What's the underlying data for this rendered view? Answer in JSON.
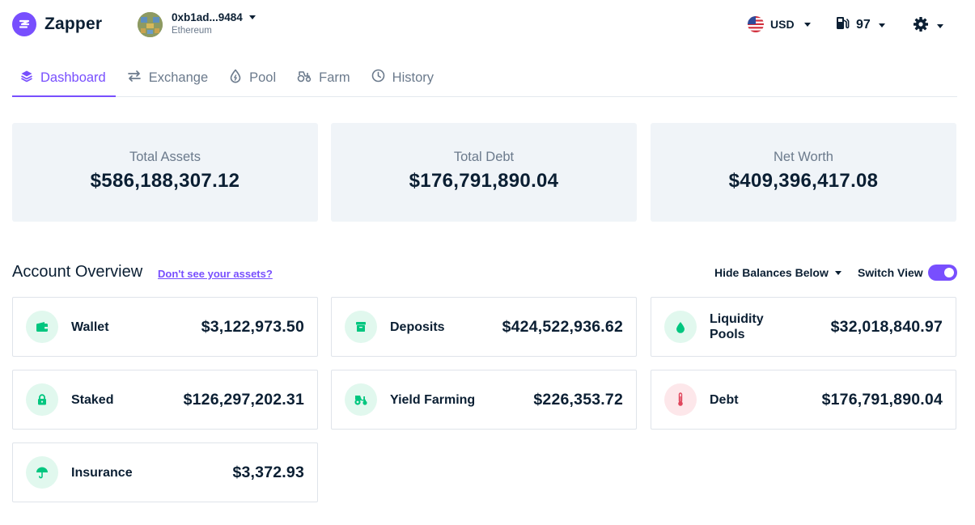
{
  "app": {
    "name": "Zapper"
  },
  "account": {
    "address": "0xb1ad...9484",
    "network": "Ethereum"
  },
  "currency": {
    "code": "USD"
  },
  "gas": {
    "value": "97"
  },
  "nav": [
    {
      "label": "Dashboard",
      "icon": "layers-icon",
      "active": true
    },
    {
      "label": "Exchange",
      "icon": "exchange-icon",
      "active": false
    },
    {
      "label": "Pool",
      "icon": "droplet-icon",
      "active": false
    },
    {
      "label": "Farm",
      "icon": "tractor-icon",
      "active": false
    },
    {
      "label": "History",
      "icon": "clock-icon",
      "active": false
    }
  ],
  "summary": {
    "total_assets": {
      "label": "Total Assets",
      "value": "$586,188,307.12"
    },
    "total_debt": {
      "label": "Total Debt",
      "value": "$176,791,890.04"
    },
    "net_worth": {
      "label": "Net Worth",
      "value": "$409,396,417.08"
    }
  },
  "overview": {
    "title": "Account Overview",
    "link": "Don't see your assets?",
    "hide_balances": "Hide Balances Below",
    "switch_view": "Switch View",
    "switch_on": true
  },
  "categories": [
    {
      "label": "Wallet",
      "value": "$3,122,973.50",
      "icon": "wallet-icon"
    },
    {
      "label": "Deposits",
      "value": "$424,522,936.62",
      "icon": "deposit-box-icon"
    },
    {
      "label": "Liquidity Pools",
      "value": "$32,018,840.97",
      "icon": "droplet-icon"
    },
    {
      "label": "Staked",
      "value": "$126,297,202.31",
      "icon": "lock-icon"
    },
    {
      "label": "Yield Farming",
      "value": "$226,353.72",
      "icon": "tractor-icon"
    },
    {
      "label": "Debt",
      "value": "$176,791,890.04",
      "icon": "thermometer-icon"
    },
    {
      "label": "Insurance",
      "value": "$3,372.93",
      "icon": "umbrella-icon"
    }
  ],
  "colors": {
    "brand": "#784ffe",
    "text": "#0b1f33",
    "muted": "#6b7a8c",
    "asset_green": "#00c67f",
    "debt_red": "#e0475d",
    "card_bg": "#f0f4f8"
  }
}
